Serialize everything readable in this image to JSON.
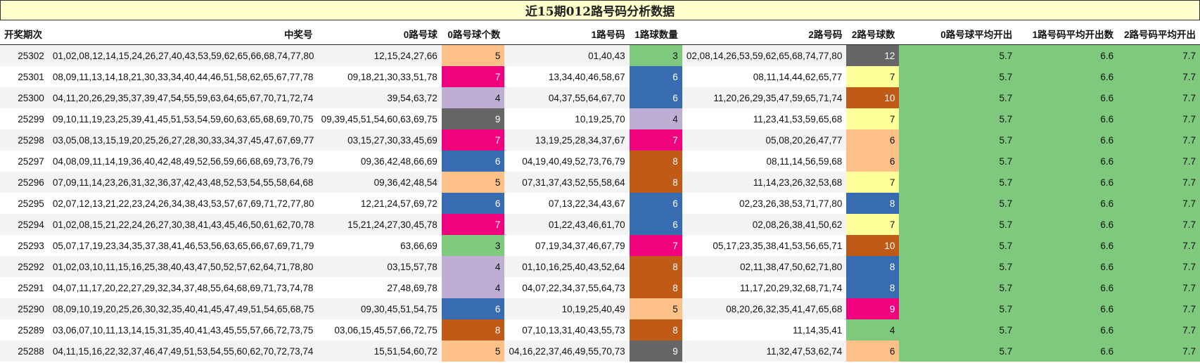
{
  "title": "近15期012路号码分析数据",
  "headers": [
    "开奖期次",
    "中奖号",
    "0路号球",
    "0路号球个数",
    "1路号码",
    "1路球数量",
    "2路号码",
    "2路号球数",
    "0路号球平均开出",
    "1路号码平均开出数",
    "2路号码平均开出"
  ],
  "colors": {
    "peach": "#fdc086",
    "pink": "#f0027f",
    "lavender": "#beaed4",
    "gray": "#666666",
    "blue": "#386cb0",
    "green": "#7fc97f",
    "yellow": "#ffff99",
    "brown": "#bf5b17"
  },
  "rows": [
    {
      "period": "25302",
      "numbers": "01,02,08,12,14,15,24,26,27,40,43,53,59,62,65,66,68,74,77,80",
      "r0": "12,15,24,27,66",
      "c0": "5",
      "c0_color": "peach",
      "r1": "01,40,43",
      "c1": "3",
      "c1_color": "green",
      "r2": "02,08,14,26,53,59,62,65,68,74,77,80",
      "c2": "12",
      "c2_color": "gray",
      "a0": "5.7",
      "a1": "6.6",
      "a2": "7.7"
    },
    {
      "period": "25301",
      "numbers": "08,09,11,13,14,18,21,30,33,34,40,44,46,51,58,62,65,67,77,78",
      "r0": "09,18,21,30,33,51,78",
      "c0": "7",
      "c0_color": "pink",
      "r1": "13,34,40,46,58,67",
      "c1": "6",
      "c1_color": "blue",
      "r2": "08,11,14,44,62,65,77",
      "c2": "7",
      "c2_color": "yellow",
      "a0": "5.7",
      "a1": "6.6",
      "a2": "7.7"
    },
    {
      "period": "25300",
      "numbers": "04,11,20,26,29,35,37,39,47,54,55,59,63,64,65,67,70,71,72,74",
      "r0": "39,54,63,72",
      "c0": "4",
      "c0_color": "lavender",
      "r1": "04,37,55,64,67,70",
      "c1": "6",
      "c1_color": "blue",
      "r2": "11,20,26,29,35,47,59,65,71,74",
      "c2": "10",
      "c2_color": "brown",
      "a0": "5.7",
      "a1": "6.6",
      "a2": "7.7"
    },
    {
      "period": "25299",
      "numbers": "09,10,11,19,23,25,39,41,45,51,53,54,59,60,63,65,68,69,70,75",
      "r0": "09,39,45,51,54,60,63,69,75",
      "c0": "9",
      "c0_color": "gray",
      "r1": "10,19,25,70",
      "c1": "4",
      "c1_color": "lavender",
      "r2": "11,23,41,53,59,65,68",
      "c2": "7",
      "c2_color": "yellow",
      "a0": "5.7",
      "a1": "6.6",
      "a2": "7.7"
    },
    {
      "period": "25298",
      "numbers": "03,05,08,13,15,19,20,25,26,27,28,30,33,34,37,45,47,67,69,77",
      "r0": "03,15,27,30,33,45,69",
      "c0": "7",
      "c0_color": "pink",
      "r1": "13,19,25,28,34,37,67",
      "c1": "7",
      "c1_color": "pink",
      "r2": "05,08,20,26,47,77",
      "c2": "6",
      "c2_color": "peach",
      "a0": "5.7",
      "a1": "6.6",
      "a2": "7.7"
    },
    {
      "period": "25297",
      "numbers": "04,08,09,11,14,19,36,40,42,48,49,52,56,59,66,68,69,73,76,79",
      "r0": "09,36,42,48,66,69",
      "c0": "6",
      "c0_color": "blue",
      "r1": "04,19,40,49,52,73,76,79",
      "c1": "8",
      "c1_color": "brown",
      "r2": "08,11,14,56,59,68",
      "c2": "6",
      "c2_color": "peach",
      "a0": "5.7",
      "a1": "6.6",
      "a2": "7.7"
    },
    {
      "period": "25296",
      "numbers": "07,09,11,14,23,26,31,32,36,37,42,43,48,52,53,54,55,58,64,68",
      "r0": "09,36,42,48,54",
      "c0": "5",
      "c0_color": "peach",
      "r1": "07,31,37,43,52,55,58,64",
      "c1": "8",
      "c1_color": "brown",
      "r2": "11,14,23,26,32,53,68",
      "c2": "7",
      "c2_color": "yellow",
      "a0": "5.7",
      "a1": "6.6",
      "a2": "7.7"
    },
    {
      "period": "25295",
      "numbers": "02,07,12,13,21,22,23,24,26,34,38,43,53,57,67,69,71,72,77,80",
      "r0": "12,21,24,57,69,72",
      "c0": "6",
      "c0_color": "blue",
      "r1": "07,13,22,34,43,67",
      "c1": "6",
      "c1_color": "blue",
      "r2": "02,23,26,38,53,71,77,80",
      "c2": "8",
      "c2_color": "blue",
      "a0": "5.7",
      "a1": "6.6",
      "a2": "7.7"
    },
    {
      "period": "25294",
      "numbers": "01,02,08,15,21,22,24,26,27,30,38,41,43,45,46,50,61,62,70,78",
      "r0": "15,21,24,27,30,45,78",
      "c0": "7",
      "c0_color": "pink",
      "r1": "01,22,43,46,61,70",
      "c1": "6",
      "c1_color": "blue",
      "r2": "02,08,26,38,41,50,62",
      "c2": "7",
      "c2_color": "yellow",
      "a0": "5.7",
      "a1": "6.6",
      "a2": "7.7"
    },
    {
      "period": "25293",
      "numbers": "05,07,17,19,23,34,35,37,38,41,46,53,56,63,65,66,67,69,71,79",
      "r0": "63,66,69",
      "c0": "3",
      "c0_color": "green",
      "r1": "07,19,34,37,46,67,79",
      "c1": "7",
      "c1_color": "pink",
      "r2": "05,17,23,35,38,41,53,56,65,71",
      "c2": "10",
      "c2_color": "brown",
      "a0": "5.7",
      "a1": "6.6",
      "a2": "7.7"
    },
    {
      "period": "25292",
      "numbers": "01,02,03,10,11,15,16,25,38,40,43,47,50,52,57,62,64,71,78,80",
      "r0": "03,15,57,78",
      "c0": "4",
      "c0_color": "lavender",
      "r1": "01,10,16,25,40,43,52,64",
      "c1": "8",
      "c1_color": "brown",
      "r2": "02,11,38,47,50,62,71,80",
      "c2": "8",
      "c2_color": "blue",
      "a0": "5.7",
      "a1": "6.6",
      "a2": "7.7"
    },
    {
      "period": "25291",
      "numbers": "04,07,11,17,20,22,27,29,32,34,37,48,55,64,68,69,71,73,74,78",
      "r0": "27,48,69,78",
      "c0": "4",
      "c0_color": "lavender",
      "r1": "04,07,22,34,37,55,64,73",
      "c1": "8",
      "c1_color": "brown",
      "r2": "11,17,20,29,32,68,71,74",
      "c2": "8",
      "c2_color": "blue",
      "a0": "5.7",
      "a1": "6.6",
      "a2": "7.7"
    },
    {
      "period": "25290",
      "numbers": "08,09,10,19,20,25,26,30,32,35,40,41,45,47,49,51,54,65,68,75",
      "r0": "09,30,45,51,54,75",
      "c0": "6",
      "c0_color": "blue",
      "r1": "10,19,25,40,49",
      "c1": "5",
      "c1_color": "peach",
      "r2": "08,20,26,32,35,41,47,65,68",
      "c2": "9",
      "c2_color": "pink",
      "a0": "5.7",
      "a1": "6.6",
      "a2": "7.7"
    },
    {
      "period": "25289",
      "numbers": "03,06,07,10,11,13,14,15,31,35,40,41,43,45,55,57,66,72,73,75",
      "r0": "03,06,15,45,57,66,72,75",
      "c0": "8",
      "c0_color": "brown",
      "r1": "07,10,13,31,40,43,55,73",
      "c1": "8",
      "c1_color": "brown",
      "r2": "11,14,35,41",
      "c2": "4",
      "c2_color": "green",
      "a0": "5.7",
      "a1": "6.6",
      "a2": "7.7"
    },
    {
      "period": "25288",
      "numbers": "04,11,15,16,22,32,37,46,47,49,51,53,54,55,60,62,70,72,73,74",
      "r0": "15,51,54,60,72",
      "c0": "5",
      "c0_color": "peach",
      "r1": "04,16,22,37,46,49,55,70,73",
      "c1": "9",
      "c1_color": "gray",
      "r2": "11,32,47,53,62,74",
      "c2": "6",
      "c2_color": "peach",
      "a0": "5.7",
      "a1": "6.6",
      "a2": "7.7"
    }
  ]
}
